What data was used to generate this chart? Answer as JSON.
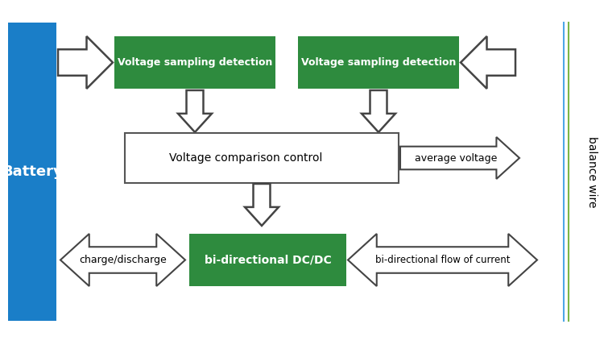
{
  "bg_color": "#ffffff",
  "battery_color": "#1a7ec8",
  "green_color": "#2e8b3e",
  "white_color": "#ffffff",
  "arrow_fill_color": "#ffffff",
  "arrow_edge_color": "#444444",
  "border_color": "#555555",
  "wire_color": "#7ab648",
  "blue_wire_color": "#4da6e8",
  "text_battery": "Battery",
  "text_vsd1": "Voltage sampling detection",
  "text_vsd2": "Voltage sampling detection",
  "text_vcc": "Voltage comparison control",
  "text_avg": "average voltage",
  "text_bidir": "bi-directional DC/DC",
  "text_chg": "charge/discharge",
  "text_flow": "bi-directional flow of current",
  "text_wire": "balance wire",
  "fig_w": 7.5,
  "fig_h": 4.28,
  "dpi": 100
}
